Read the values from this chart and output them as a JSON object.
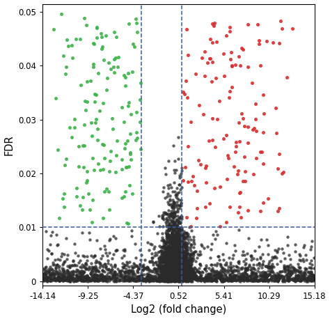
{
  "title": "",
  "xlabel": "Log2 (fold change)",
  "ylabel": "FDR",
  "xlim": [
    -14.14,
    15.18
  ],
  "ylim": [
    -0.0008,
    0.0515
  ],
  "xticks": [
    -14.14,
    -9.25,
    -4.37,
    0.52,
    5.41,
    10.29,
    15.18
  ],
  "yticks": [
    0,
    0.01,
    0.02,
    0.03,
    0.04,
    0.05
  ],
  "vline1": -3.5,
  "vline2": 0.9,
  "hline": 0.01,
  "vline_color": "#3a5fa0",
  "hline_color": "#3a5fa0",
  "black_color": "#2a2a2a",
  "green_color": "#3db54a",
  "red_color": "#dc2f2f",
  "dot_size": 10,
  "random_seed": 12345,
  "background_color": "#ffffff"
}
